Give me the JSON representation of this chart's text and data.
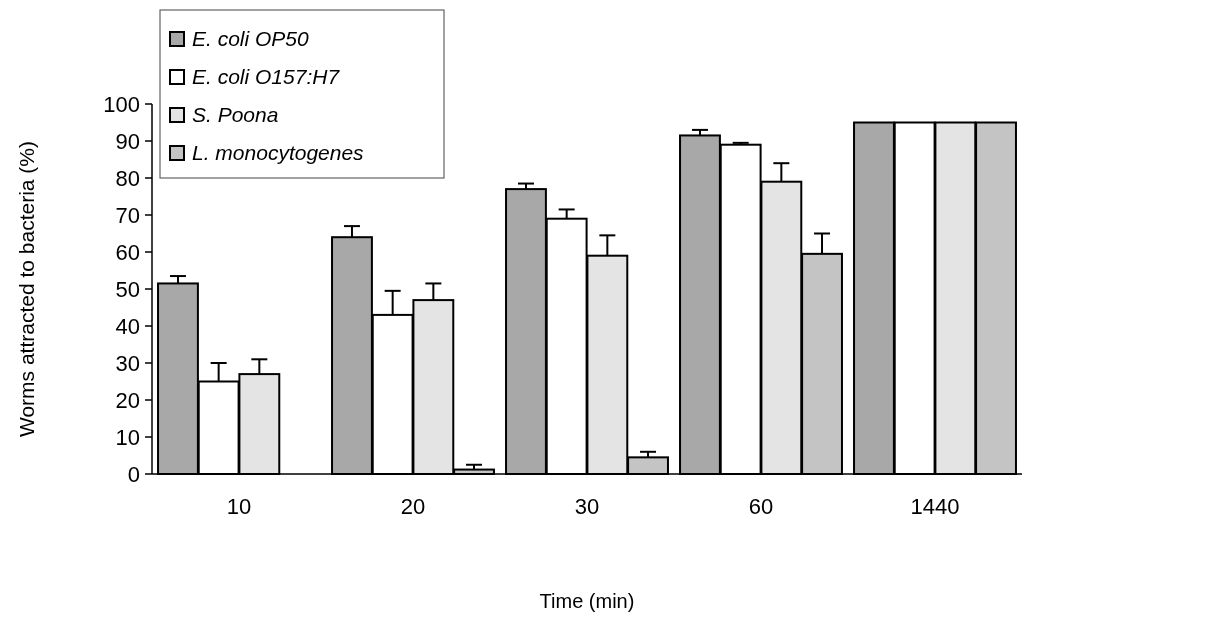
{
  "chart_data": {
    "type": "bar",
    "xlabel": "Time (min)",
    "ylabel": "Worms attracted to bacteria (%)",
    "categories": [
      "10",
      "20",
      "30",
      "60",
      "1440"
    ],
    "ylim": [
      0,
      100
    ],
    "yticks": [
      0,
      10,
      20,
      30,
      40,
      50,
      60,
      70,
      80,
      90,
      100
    ],
    "grid": false,
    "legend": "top left",
    "series": [
      {
        "name": "E. coli OP50",
        "color": "#a8a8a8",
        "values": [
          51.5,
          64,
          77,
          91.5,
          95
        ],
        "errors": [
          [
            51.5,
            53.5
          ],
          [
            64,
            67
          ],
          [
            77,
            78.5
          ],
          [
            91.5,
            93
          ],
          null
        ]
      },
      {
        "name": "E. coli O157:H7",
        "color": "#ffffff",
        "values": [
          25,
          43,
          69,
          89,
          95
        ],
        "errors": [
          [
            25,
            30
          ],
          [
            43,
            49.5
          ],
          [
            69,
            71.5
          ],
          [
            89,
            89.5
          ],
          null
        ]
      },
      {
        "name": "S. Poona",
        "color": "#e4e4e4",
        "values": [
          27,
          47,
          59,
          79,
          95
        ],
        "errors": [
          [
            27,
            31
          ],
          [
            47,
            51.5
          ],
          [
            59,
            64.5
          ],
          [
            79,
            84
          ],
          null
        ]
      },
      {
        "name": "L. monocytogenes",
        "color": "#c4c4c4",
        "values": [
          0,
          1.2,
          4.5,
          59.5,
          95
        ],
        "errors": [
          null,
          [
            1.2,
            2.5
          ],
          [
            4.5,
            6
          ],
          [
            59.5,
            65
          ],
          null
        ]
      }
    ]
  }
}
